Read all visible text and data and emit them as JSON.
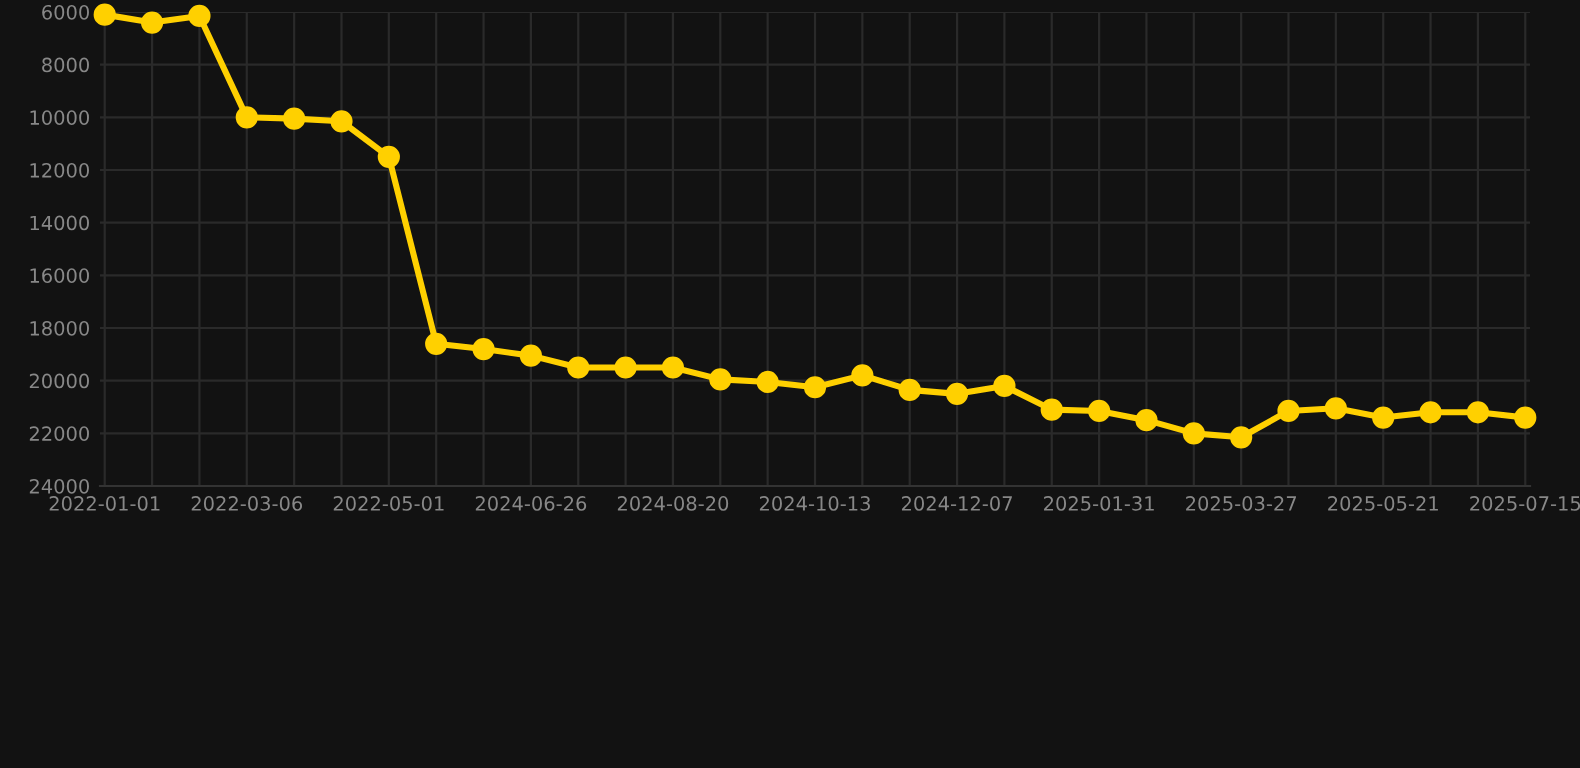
{
  "chart_data": {
    "type": "line",
    "categories": [
      "2022-01-01",
      null,
      null,
      "2022-03-06",
      null,
      null,
      "2022-05-01",
      null,
      null,
      "2024-06-26",
      null,
      null,
      "2024-08-20",
      null,
      null,
      "2024-10-13",
      null,
      null,
      "2024-12-07",
      null,
      null,
      "2025-01-31",
      null,
      null,
      "2025-03-27",
      null,
      null,
      "2025-05-21",
      null,
      null,
      "2025-07-15"
    ],
    "series": [
      {
        "color": "#ffd000",
        "values": [
          6100,
          6400,
          6150,
          10000,
          10050,
          10150,
          11500,
          18600,
          18800,
          19050,
          19500,
          19500,
          19500,
          19950,
          20050,
          20250,
          19800,
          20350,
          20500,
          20200,
          21100,
          21150,
          21500,
          22000,
          22150,
          21150,
          21050,
          21400,
          21200,
          21200,
          21400
        ]
      }
    ],
    "ylim": [
      24000,
      6000
    ],
    "yticks": [
      6000,
      8000,
      10000,
      12000,
      14000,
      16000,
      18000,
      20000,
      22000,
      24000
    ],
    "grid": true,
    "marker": "circle",
    "line_style": "solid"
  }
}
